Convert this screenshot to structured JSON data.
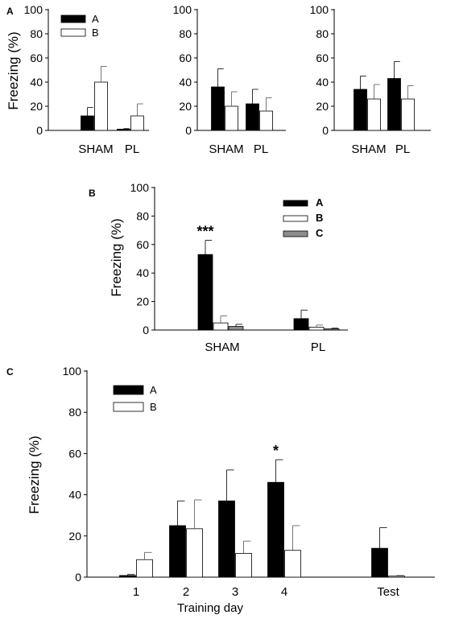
{
  "chart_data": [
    {
      "panel": "A",
      "type": "bar",
      "ylabel": "Freezing (%)",
      "ylim": [
        0,
        100
      ],
      "yticks": [
        0,
        20,
        40,
        60,
        80,
        100
      ],
      "categories": [
        "SHAM",
        "PL"
      ],
      "legend": [
        "A",
        "B"
      ],
      "subplots": [
        {
          "series": [
            {
              "name": "A",
              "values": [
                12,
                1
              ],
              "errors": [
                7,
                0.5
              ]
            },
            {
              "name": "B",
              "values": [
                40,
                12
              ],
              "errors": [
                13,
                10
              ]
            }
          ]
        },
        {
          "series": [
            {
              "name": "A",
              "values": [
                36,
                22
              ],
              "errors": [
                15,
                12
              ]
            },
            {
              "name": "B",
              "values": [
                20,
                16
              ],
              "errors": [
                12,
                11
              ]
            }
          ]
        },
        {
          "series": [
            {
              "name": "A",
              "values": [
                34,
                43
              ],
              "errors": [
                11,
                14
              ]
            },
            {
              "name": "B",
              "values": [
                26,
                26
              ],
              "errors": [
                12,
                11
              ]
            }
          ]
        }
      ]
    },
    {
      "panel": "B",
      "type": "bar",
      "ylabel": "Freezing (%)",
      "ylim": [
        0,
        100
      ],
      "yticks": [
        0,
        20,
        40,
        60,
        80,
        100
      ],
      "categories": [
        "SHAM",
        "PL"
      ],
      "legend": [
        "A",
        "B",
        "C"
      ],
      "series": [
        {
          "name": "A",
          "values": [
            53,
            8
          ],
          "errors": [
            10,
            6
          ]
        },
        {
          "name": "B",
          "values": [
            5,
            2
          ],
          "errors": [
            5,
            1.5
          ]
        },
        {
          "name": "C",
          "values": [
            2.5,
            0.8
          ],
          "errors": [
            1.5,
            0.5
          ]
        }
      ],
      "annotations": [
        {
          "category": "SHAM",
          "series": "A",
          "text": "***"
        }
      ]
    },
    {
      "panel": "C",
      "type": "bar",
      "ylabel": "Freezing (%)",
      "xlabel": "Training day",
      "ylim": [
        0,
        100
      ],
      "yticks": [
        0,
        20,
        40,
        60,
        80,
        100
      ],
      "categories": [
        "1",
        "2",
        "3",
        "4",
        "Test"
      ],
      "legend": [
        "A",
        "B"
      ],
      "series": [
        {
          "name": "A",
          "values": [
            0.8,
            25,
            37,
            46,
            14
          ],
          "errors": [
            0.5,
            12,
            15,
            11,
            10
          ]
        },
        {
          "name": "B",
          "values": [
            8.5,
            23.5,
            11.5,
            13,
            0.5
          ],
          "errors": [
            3.5,
            14,
            6,
            12,
            0.3
          ]
        }
      ],
      "annotations": [
        {
          "category": "4",
          "series": "A",
          "text": "*"
        }
      ]
    }
  ],
  "colors": {
    "A": "#000000",
    "B": "#ffffff",
    "C": "#8c8c8c",
    "axis": "#000000"
  }
}
